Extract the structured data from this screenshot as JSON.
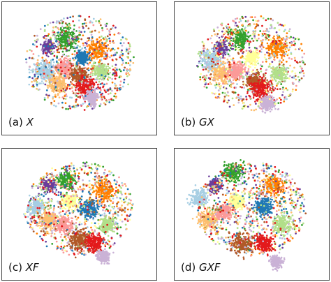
{
  "chart_data": [
    {
      "type": "scatter",
      "label": "(a)",
      "variable": "X",
      "clusters": [
        {
          "color": "#33a02c",
          "cx": 0.42,
          "cy": 0.28,
          "r": 0.07
        },
        {
          "color": "#ff7f00",
          "cx": 0.62,
          "cy": 0.36,
          "r": 0.07
        },
        {
          "color": "#6a3d9a",
          "cx": 0.3,
          "cy": 0.34,
          "r": 0.04
        },
        {
          "color": "#a6cee3",
          "cx": 0.28,
          "cy": 0.52,
          "r": 0.07
        },
        {
          "color": "#fb9a99",
          "cx": 0.4,
          "cy": 0.5,
          "r": 0.06
        },
        {
          "color": "#fdbf6f",
          "cx": 0.36,
          "cy": 0.62,
          "r": 0.06
        },
        {
          "color": "#b15928",
          "cx": 0.5,
          "cy": 0.55,
          "r": 0.06
        },
        {
          "color": "#e31a1c",
          "cx": 0.54,
          "cy": 0.64,
          "r": 0.07
        },
        {
          "color": "#b2df8a",
          "cx": 0.64,
          "cy": 0.52,
          "r": 0.05
        },
        {
          "color": "#cab2d6",
          "cx": 0.58,
          "cy": 0.72,
          "r": 0.05
        },
        {
          "color": "#1f78b4",
          "cx": 0.52,
          "cy": 0.42,
          "r": 0.04
        }
      ]
    },
    {
      "type": "scatter",
      "label": "(b)",
      "variable": "GX",
      "clusters": [
        {
          "color": "#33a02c",
          "cx": 0.42,
          "cy": 0.28,
          "r": 0.07
        },
        {
          "color": "#ff7f00",
          "cx": 0.66,
          "cy": 0.34,
          "r": 0.07
        },
        {
          "color": "#6a3d9a",
          "cx": 0.3,
          "cy": 0.34,
          "r": 0.04
        },
        {
          "color": "#a6cee3",
          "cx": 0.24,
          "cy": 0.44,
          "r": 0.07
        },
        {
          "color": "#fdbf6f",
          "cx": 0.3,
          "cy": 0.54,
          "r": 0.07
        },
        {
          "color": "#fb9a99",
          "cx": 0.4,
          "cy": 0.52,
          "r": 0.06
        },
        {
          "color": "#b15928",
          "cx": 0.52,
          "cy": 0.6,
          "r": 0.06
        },
        {
          "color": "#e31a1c",
          "cx": 0.56,
          "cy": 0.66,
          "r": 0.07
        },
        {
          "color": "#b2df8a",
          "cx": 0.68,
          "cy": 0.54,
          "r": 0.05
        },
        {
          "color": "#cab2d6",
          "cx": 0.6,
          "cy": 0.76,
          "r": 0.05
        },
        {
          "color": "#ffff99",
          "cx": 0.5,
          "cy": 0.42,
          "r": 0.04
        }
      ]
    },
    {
      "type": "scatter",
      "label": "(c)",
      "variable": "XF",
      "clusters": [
        {
          "color": "#33a02c",
          "cx": 0.42,
          "cy": 0.24,
          "r": 0.06
        },
        {
          "color": "#ff7f00",
          "cx": 0.66,
          "cy": 0.32,
          "r": 0.07
        },
        {
          "color": "#6a3d9a",
          "cx": 0.3,
          "cy": 0.28,
          "r": 0.04
        },
        {
          "color": "#a6cee3",
          "cx": 0.22,
          "cy": 0.44,
          "r": 0.06
        },
        {
          "color": "#ffff99",
          "cx": 0.44,
          "cy": 0.4,
          "r": 0.05
        },
        {
          "color": "#fdbf6f",
          "cx": 0.3,
          "cy": 0.54,
          "r": 0.07
        },
        {
          "color": "#fb9a99",
          "cx": 0.4,
          "cy": 0.58,
          "r": 0.06
        },
        {
          "color": "#1f78b4",
          "cx": 0.56,
          "cy": 0.46,
          "r": 0.06
        },
        {
          "color": "#b2df8a",
          "cx": 0.68,
          "cy": 0.58,
          "r": 0.05
        },
        {
          "color": "#b15928",
          "cx": 0.5,
          "cy": 0.7,
          "r": 0.07
        },
        {
          "color": "#e31a1c",
          "cx": 0.6,
          "cy": 0.72,
          "r": 0.06
        },
        {
          "color": "#cab2d6",
          "cx": 0.66,
          "cy": 0.82,
          "r": 0.04
        }
      ]
    },
    {
      "type": "scatter",
      "label": "(d)",
      "variable": "GXF",
      "clusters": [
        {
          "color": "#33a02c",
          "cx": 0.38,
          "cy": 0.18,
          "r": 0.07
        },
        {
          "color": "#ff7f00",
          "cx": 0.64,
          "cy": 0.28,
          "r": 0.07
        },
        {
          "color": "#6a3d9a",
          "cx": 0.26,
          "cy": 0.28,
          "r": 0.04
        },
        {
          "color": "#a6cee3",
          "cx": 0.16,
          "cy": 0.38,
          "r": 0.06
        },
        {
          "color": "#ffff99",
          "cx": 0.4,
          "cy": 0.4,
          "r": 0.05
        },
        {
          "color": "#fdbf6f",
          "cx": 0.22,
          "cy": 0.54,
          "r": 0.07
        },
        {
          "color": "#fb9a99",
          "cx": 0.32,
          "cy": 0.48,
          "r": 0.05
        },
        {
          "color": "#1f78b4",
          "cx": 0.58,
          "cy": 0.44,
          "r": 0.06
        },
        {
          "color": "#b2df8a",
          "cx": 0.7,
          "cy": 0.58,
          "r": 0.06
        },
        {
          "color": "#b15928",
          "cx": 0.44,
          "cy": 0.72,
          "r": 0.07
        },
        {
          "color": "#e31a1c",
          "cx": 0.58,
          "cy": 0.72,
          "r": 0.06
        },
        {
          "color": "#cab2d6",
          "cx": 0.66,
          "cy": 0.86,
          "r": 0.04
        }
      ]
    }
  ]
}
